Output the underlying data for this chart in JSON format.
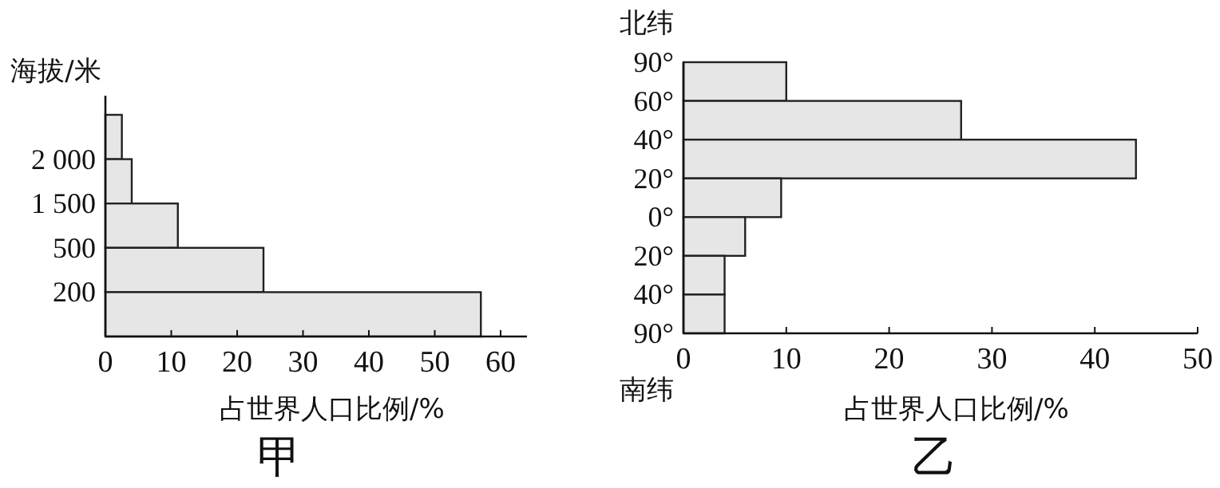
{
  "chart_data": [
    {
      "type": "bar",
      "orientation": "horizontal",
      "title": "甲",
      "xlabel": "占世界人口比例/%",
      "ylabel": "海拔/米",
      "categories": [
        null,
        null,
        null,
        null,
        null
      ],
      "values": [
        2.5,
        4,
        11,
        24,
        57
      ],
      "color": "#e6e6e6",
      "xlim": [
        0,
        64
      ],
      "xticks": [
        0,
        10,
        20,
        30,
        40,
        50,
        60
      ],
      "annotations": [
        "2 000",
        "1 500",
        "500",
        "200"
      ]
    },
    {
      "type": "bar",
      "orientation": "horizontal",
      "title": "乙",
      "xlabel": "占世界人口比例/%",
      "ylabel": "北纬",
      "categories": [
        null,
        null,
        null,
        null,
        null,
        null,
        null
      ],
      "values": [
        10,
        27,
        44,
        9.5,
        6,
        4,
        4
      ],
      "color": "#e6e6e6",
      "xlim": [
        0,
        50
      ],
      "xticks": [
        0,
        10,
        20,
        30,
        40,
        50
      ],
      "annotations": [
        "90°",
        "60°",
        "40°",
        "20°",
        "0°",
        "20°",
        "40°",
        "90°",
        "南纬"
      ]
    }
  ]
}
